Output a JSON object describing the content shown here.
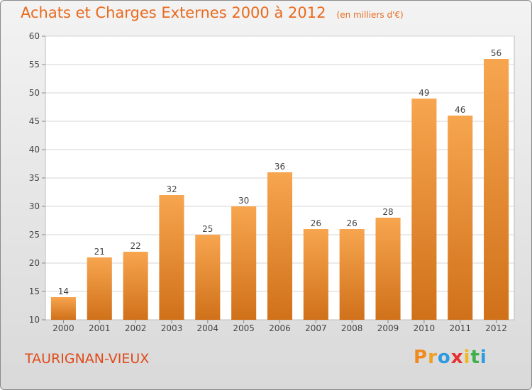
{
  "chart_data": {
    "type": "bar",
    "title": "Achats et Charges Externes 2000 à 2012",
    "unit_note": "(en milliers d'€)",
    "categories": [
      "2000",
      "2001",
      "2002",
      "2003",
      "2004",
      "2005",
      "2006",
      "2007",
      "2008",
      "2009",
      "2010",
      "2011",
      "2012"
    ],
    "values": [
      14,
      21,
      22,
      32,
      25,
      30,
      36,
      26,
      26,
      28,
      49,
      46,
      56
    ],
    "ylim": [
      10,
      60
    ],
    "yticks": [
      10,
      15,
      20,
      25,
      30,
      35,
      40,
      45,
      50,
      55,
      60
    ],
    "grid": true,
    "xlabel": "",
    "ylabel": "",
    "bar_color_top": "#f7a54f",
    "bar_color_bottom": "#d0711a"
  },
  "commune_name": "TAURIGNAN-VIEUX",
  "logo": {
    "letters": [
      "P",
      "r",
      "o",
      "x",
      "i",
      "t",
      "i"
    ],
    "colors": [
      "#f08a1e",
      "#f0a020",
      "#2e9be0",
      "#e83030",
      "#f0b820",
      "#3cb04a",
      "#2e9be0"
    ]
  }
}
